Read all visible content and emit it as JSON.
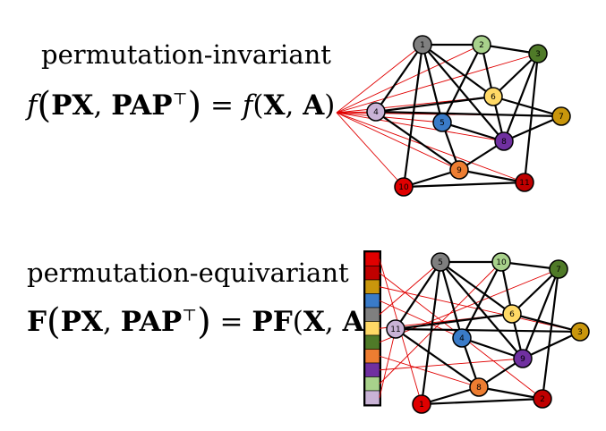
{
  "top": {
    "title": "permutation-invariant",
    "formula": {
      "lhs_fn": "f",
      "lhs_args_1": "PX",
      "lhs_args_2": "PAP",
      "transpose": "⊤",
      "eq": "=",
      "rhs_fn": "f",
      "rhs_args_1": "X",
      "rhs_args_2": "A"
    }
  },
  "bottom": {
    "title": "permutation-equivariant",
    "formula": {
      "lhs_fn": "F",
      "lhs_args_1": "PX",
      "lhs_args_2": "PAP",
      "transpose": "⊤",
      "eq": "=",
      "rhs_fn": "PF",
      "rhs_args_1": "X",
      "rhs_args_2": "A"
    }
  },
  "graph_top": {
    "nodes": [
      {
        "id": "1",
        "color": "#7f7f7f"
      },
      {
        "id": "2",
        "color": "#a8d18b"
      },
      {
        "id": "3",
        "color": "#4f7a28"
      },
      {
        "id": "4",
        "color": "#c9b3d6"
      },
      {
        "id": "5",
        "color": "#3a7bc8"
      },
      {
        "id": "6",
        "color": "#ffd966"
      },
      {
        "id": "7",
        "color": "#c9960c"
      },
      {
        "id": "8",
        "color": "#7030a0"
      },
      {
        "id": "9",
        "color": "#ed7d31"
      },
      {
        "id": "10",
        "color": "#e00000"
      },
      {
        "id": "11",
        "color": "#c00000"
      }
    ]
  },
  "graph_bottom": {
    "nodes": [
      {
        "id": "5",
        "color": "#7f7f7f"
      },
      {
        "id": "10",
        "color": "#a8d18b"
      },
      {
        "id": "7",
        "color": "#4f7a28"
      },
      {
        "id": "11",
        "color": "#c9b3d6"
      },
      {
        "id": "4",
        "color": "#3a7bc8"
      },
      {
        "id": "6",
        "color": "#ffd966"
      },
      {
        "id": "3",
        "color": "#c9960c"
      },
      {
        "id": "9",
        "color": "#7030a0"
      },
      {
        "id": "8",
        "color": "#ed7d31"
      },
      {
        "id": "1",
        "color": "#e00000"
      },
      {
        "id": "2",
        "color": "#c00000"
      }
    ],
    "feature_column": [
      "#e00000",
      "#c00000",
      "#c9960c",
      "#3a7bc8",
      "#7f7f7f",
      "#ffd966",
      "#4f7a28",
      "#ed7d31",
      "#7030a0",
      "#a8d18b",
      "#c9b3d6"
    ]
  }
}
